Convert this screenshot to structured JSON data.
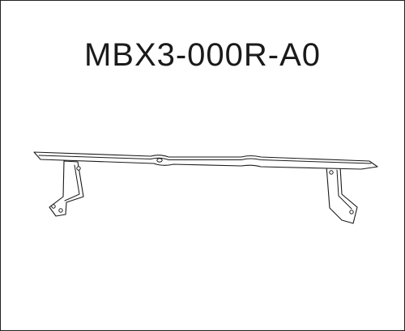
{
  "part_number": "MBX3-000R-A0",
  "colors": {
    "background": "#ffffff",
    "line": "#1a1a1a"
  }
}
